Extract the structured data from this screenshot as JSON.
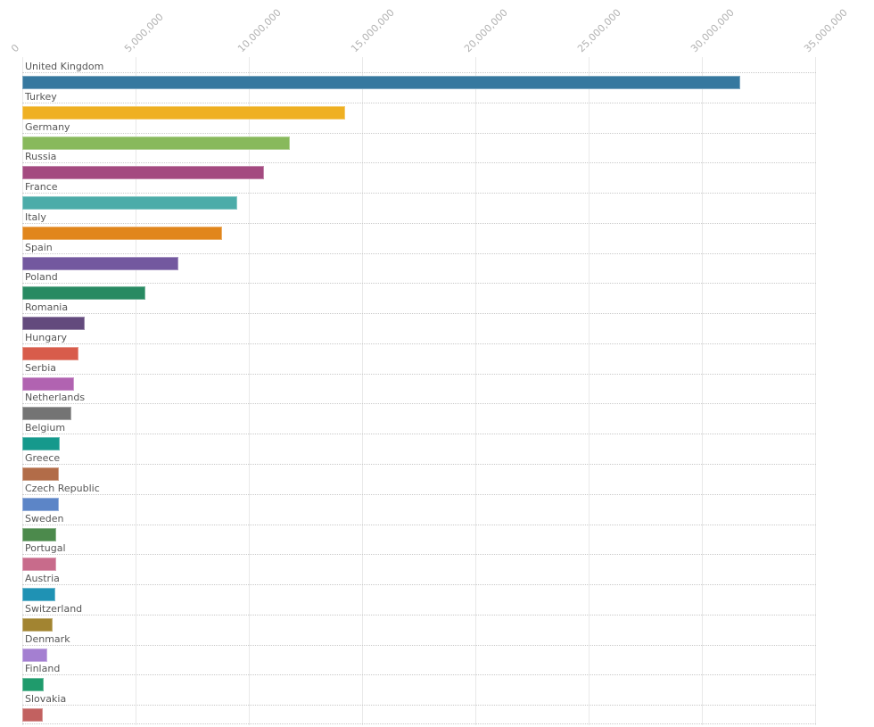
{
  "chart_data": {
    "type": "bar",
    "orientation": "horizontal",
    "title": "",
    "xlabel": "",
    "ylabel": "",
    "legend_position": "none",
    "x_axis": {
      "position": "top",
      "range": [
        0,
        35000000
      ],
      "grid": true,
      "tick_values": [
        0,
        5000000,
        10000000,
        15000000,
        20000000,
        25000000,
        30000000,
        35000000
      ],
      "tick_labels": [
        "0",
        "5,000,000",
        "10,000,000",
        "15,000,000",
        "20,000,000",
        "25,000,000",
        "30,000,000",
        "35,000,000"
      ]
    },
    "categories": [
      "United Kingdom",
      "Turkey",
      "Germany",
      "Russia",
      "France",
      "Italy",
      "Spain",
      "Poland",
      "Romania",
      "Hungary",
      "Serbia",
      "Netherlands",
      "Belgium",
      "Greece",
      "Czech Republic",
      "Sweden",
      "Portugal",
      "Austria",
      "Switzerland",
      "Denmark",
      "Finland",
      "Slovakia"
    ],
    "values": [
      31700000,
      14250000,
      11800000,
      10650000,
      9500000,
      8800000,
      6900000,
      5450000,
      2750000,
      2480000,
      2280000,
      2160000,
      1650000,
      1610000,
      1600000,
      1500000,
      1490000,
      1460000,
      1330000,
      1100000,
      940000,
      900000
    ],
    "bar_colors": [
      "#36789f",
      "#efb022",
      "#88b95c",
      "#a44a80",
      "#4caca9",
      "#e1861c",
      "#73589f",
      "#288a62",
      "#634a7d",
      "#d85c4b",
      "#b163b1",
      "#747474",
      "#15998c",
      "#b26c48",
      "#5c85c7",
      "#4c8a4c",
      "#c86b8b",
      "#1f92b4",
      "#a28431",
      "#a47fd1",
      "#1f9b6c",
      "#c26160"
    ],
    "style": {
      "gridline_color": "#e9e9e9",
      "tick_label_color": "#b2b2b2",
      "category_label_color": "#565656",
      "row_divider_color": "#c9c9c9",
      "background_color": "#ffffff"
    }
  }
}
